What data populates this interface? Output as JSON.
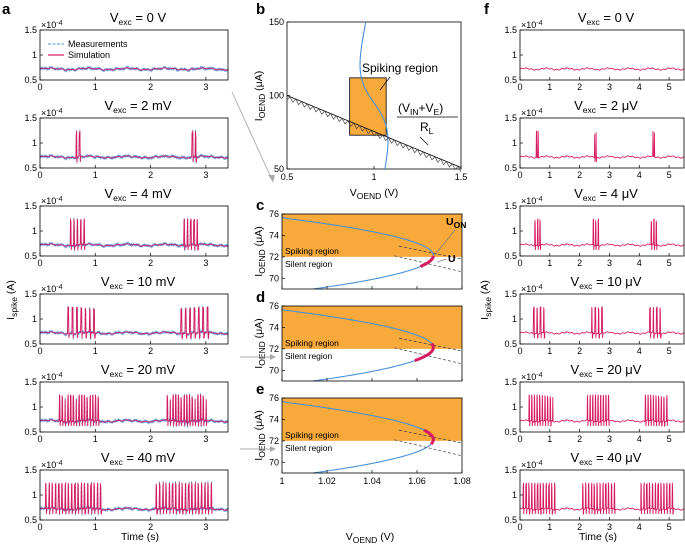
{
  "chart_data": [
    {
      "panel": "a",
      "type": "line",
      "letter": "a",
      "x_label": "Time (s)",
      "y_label_main": "I",
      "y_label_sub": "spike",
      "y_label_unit": " (A)",
      "y_exponent": "×10",
      "y_exponent_power": "-4",
      "xlim": [
        0,
        3.4
      ],
      "ylim": [
        0.5,
        1.5
      ],
      "x_ticks": [
        "0",
        "1",
        "2",
        "3"
      ],
      "y_ticks": [
        "0.5",
        "1",
        "1.5"
      ],
      "legend": [
        "Measurements",
        "Simulation"
      ],
      "series_colors": {
        "measurements": "#4a90d9",
        "simulation": "#d81b60"
      },
      "subplots": [
        {
          "title_main": "V",
          "title_sub": "exc",
          "title_value": " = 0 V",
          "burst_starts": [],
          "burst_len": 0,
          "spikes": 0
        },
        {
          "title_main": "V",
          "title_sub": "exc",
          "title_value": " = 2 mV",
          "burst_starts": [
            0.65,
            2.75
          ],
          "burst_len": 0.12,
          "spikes": 2
        },
        {
          "title_main": "V",
          "title_sub": "exc",
          "title_value": " = 4 mV",
          "burst_starts": [
            0.55,
            2.6
          ],
          "burst_len": 0.3,
          "spikes": 5
        },
        {
          "title_main": "V",
          "title_sub": "exc",
          "title_value": " = 10 mV",
          "burst_starts": [
            0.5,
            2.55
          ],
          "burst_len": 0.55,
          "spikes": 7
        },
        {
          "title_main": "V",
          "title_sub": "exc",
          "title_value": " = 20 mV",
          "burst_starts": [
            0.35,
            2.3
          ],
          "burst_len": 0.75,
          "spikes": 15
        },
        {
          "title_main": "V",
          "title_sub": "exc",
          "title_value": " = 40 mV",
          "burst_starts": [
            0.1,
            2.1
          ],
          "burst_len": 1.05,
          "spikes": 18
        }
      ]
    },
    {
      "panel": "b",
      "type": "line",
      "letter": "b",
      "x_label_main": "V",
      "x_label_sub": "OEND",
      "x_label_unit": " (V)",
      "y_label_main": "I",
      "y_label_sub": "OEND",
      "y_label_unit": " (μA)",
      "xlim": [
        0.5,
        1.5
      ],
      "ylim": [
        50,
        150
      ],
      "x_ticks": [
        "0.5",
        "1",
        "1.5"
      ],
      "y_ticks": [
        "50",
        "100",
        "150"
      ],
      "x_tick_values": [
        0.5,
        1.0,
        1.5
      ],
      "y_tick_values": [
        50,
        100,
        150
      ],
      "region_label": "Spiking region",
      "region_box": {
        "x": [
          0.86,
          1.07
        ],
        "y": [
          73,
          112
        ]
      },
      "load_line": {
        "x": [
          0.5,
          1.5
        ],
        "y": [
          100,
          51
        ]
      },
      "load_formula_num_a": "(V",
      "load_formula_sub_a": "IN",
      "load_formula_plus": "+V",
      "load_formula_sub_b": "E",
      "load_formula_close": ")",
      "load_formula_den": "R",
      "load_formula_den_sub": "L"
    },
    {
      "panel": "cde",
      "type": "line",
      "letters": [
        "c",
        "d",
        "e"
      ],
      "x_label_main": "V",
      "x_label_sub": "OEND",
      "x_label_unit": " (V)",
      "y_label_main": "I",
      "y_label_sub": "OEND",
      "y_label_unit": " (μA)",
      "xlim": [
        1.0,
        1.08
      ],
      "ylim": [
        69,
        76
      ],
      "x_ticks": [
        "1",
        "1.02",
        "1.04",
        "1.06",
        "1.08"
      ],
      "x_tick_values": [
        1.0,
        1.02,
        1.04,
        1.06,
        1.08
      ],
      "y_ticks": [
        "70",
        "72",
        "74",
        "76"
      ],
      "y_tick_values": [
        70,
        72,
        74,
        76
      ],
      "spiking_label": "Spiking region",
      "silent_label": "Silent region",
      "boundary_y": 72,
      "annotation_uon": "U",
      "annotation_uon_sub": "ON",
      "annotation_u": "U",
      "segment_y": [
        [
          71.1,
          72.1
        ],
        [
          70.9,
          72.5
        ],
        [
          71.7,
          73.0
        ]
      ],
      "accent_orange": "#f7a93b",
      "accent_blue": "#4a90d9",
      "accent_pink": "#d81b60"
    },
    {
      "panel": "f",
      "type": "line",
      "letter": "f",
      "x_label": "Time (s)",
      "y_label_main": "I",
      "y_label_sub": "spike",
      "y_label_unit": " (A)",
      "y_exponent": "×10",
      "y_exponent_power": "-4",
      "xlim": [
        0,
        5.5
      ],
      "ylim": [
        0.5,
        1.5
      ],
      "x_ticks": [
        "0",
        "1",
        "2",
        "3",
        "4",
        "5"
      ],
      "y_ticks": [
        "0.5",
        "1",
        "1.5"
      ],
      "subplots": [
        {
          "title_main": "V",
          "title_sub": "exc",
          "title_value": " = 0 V",
          "burst_starts": [],
          "burst_len": 0,
          "spikes": 0
        },
        {
          "title_main": "V",
          "title_sub": "exc",
          "title_value": " = 2 μV",
          "burst_starts": [
            0.55,
            2.5,
            4.45
          ],
          "burst_len": 0.1,
          "spikes": 2
        },
        {
          "title_main": "V",
          "title_sub": "exc",
          "title_value": " = 4 μV",
          "burst_starts": [
            0.5,
            2.45,
            4.4
          ],
          "burst_len": 0.25,
          "spikes": 3
        },
        {
          "title_main": "V",
          "title_sub": "exc",
          "title_value": " = 10 μV",
          "burst_starts": [
            0.45,
            2.4,
            4.35
          ],
          "burst_len": 0.45,
          "spikes": 4
        },
        {
          "title_main": "V",
          "title_sub": "exc",
          "title_value": " = 20 μV",
          "burst_starts": [
            0.3,
            2.25,
            4.2
          ],
          "burst_len": 0.8,
          "spikes": 9
        },
        {
          "title_main": "V",
          "title_sub": "exc",
          "title_value": " = 40 μV",
          "burst_starts": [
            0.1,
            2.1,
            4.05
          ],
          "burst_len": 1.15,
          "spikes": 12
        }
      ]
    }
  ]
}
